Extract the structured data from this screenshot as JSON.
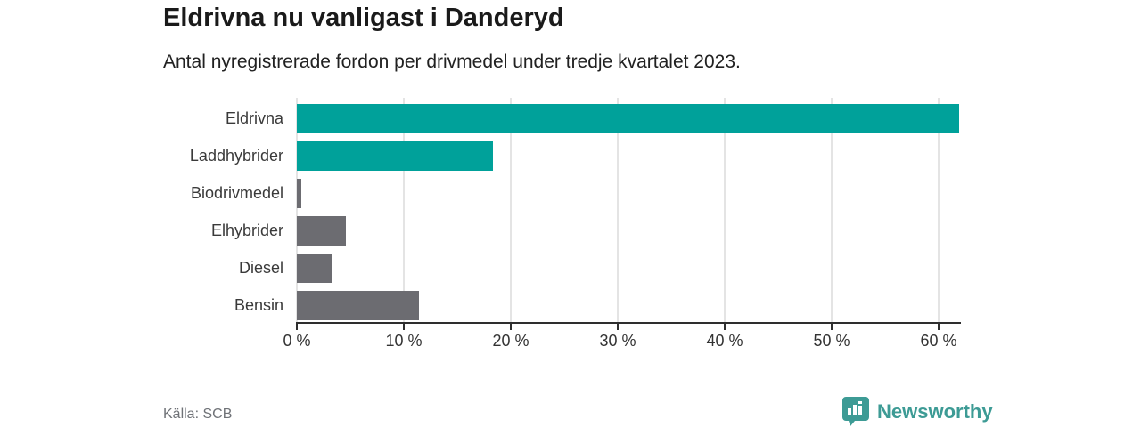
{
  "header": {
    "title": "Eldrivna nu vanligast i Danderyd",
    "subtitle": "Antal nyregistrerade fordon per drivmedel under tredje kvartalet 2023."
  },
  "chart_data": {
    "type": "bar",
    "orientation": "horizontal",
    "title": "Eldrivna nu vanligast i Danderyd",
    "subtitle": "Antal nyregistrerade fordon per drivmedel under tredje kvartalet 2023.",
    "categories": [
      "Eldrivna",
      "Laddhybrider",
      "Biodrivmedel",
      "Elhybrider",
      "Diesel",
      "Bensin"
    ],
    "values": [
      61.9,
      18.3,
      0.4,
      4.6,
      3.3,
      11.4
    ],
    "unit": "%",
    "xlabel": "",
    "ylabel": "",
    "xlim": [
      0,
      62
    ],
    "xticks": [
      0,
      10,
      20,
      30,
      40,
      50,
      60
    ],
    "xtick_suffix": " %",
    "bar_colors": [
      "#00a19a",
      "#00a19a",
      "#6c6c71",
      "#6c6c71",
      "#6c6c71",
      "#6c6c71"
    ],
    "grid": true,
    "legend": false
  },
  "footer": {
    "source": "Källa: SCB",
    "brand": "Newsworthy"
  },
  "colors": {
    "accent_teal": "#00a19a",
    "neutral_gray": "#6c6c71",
    "brand_teal": "#3d9b95",
    "gridline": "#e4e4e4",
    "axis": "#2e2e2e",
    "text_dark": "#1a1a1a",
    "text_muted": "#6f7277"
  },
  "icons": {
    "brand_logo": "newsworthy-speech-bubble-barchart-icon"
  }
}
